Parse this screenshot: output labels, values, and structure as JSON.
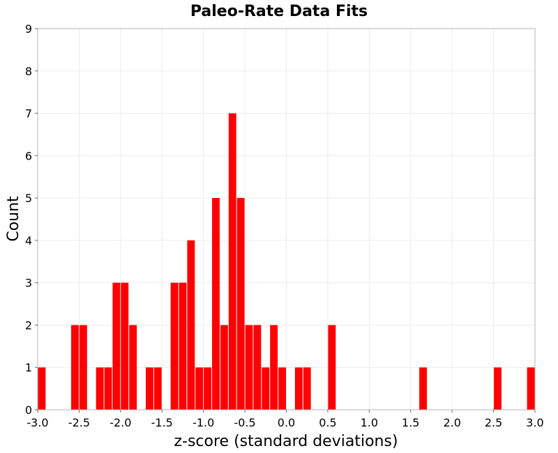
{
  "chart_data": {
    "type": "bar",
    "title": "Paleo-Rate Data Fits",
    "xlabel": "z-score (standard deviations)",
    "ylabel": "Count",
    "xlim": [
      -3.0,
      3.0
    ],
    "ylim": [
      0,
      9
    ],
    "bin_width": 0.1,
    "grid": true,
    "bar_color": "#ff0000",
    "x_ticks": [
      "-3.0",
      "-2.5",
      "-2.0",
      "-1.5",
      "-1.0",
      "-0.5",
      "0.0",
      "0.5",
      "1.0",
      "1.5",
      "2.0",
      "2.5",
      "3.0"
    ],
    "y_ticks": [
      "0",
      "1",
      "2",
      "3",
      "4",
      "5",
      "6",
      "7",
      "8",
      "9"
    ],
    "bins": [
      {
        "x": -2.95,
        "count": 1
      },
      {
        "x": -2.55,
        "count": 2
      },
      {
        "x": -2.45,
        "count": 2
      },
      {
        "x": -2.25,
        "count": 1
      },
      {
        "x": -2.15,
        "count": 1
      },
      {
        "x": -2.05,
        "count": 3
      },
      {
        "x": -1.95,
        "count": 3
      },
      {
        "x": -1.85,
        "count": 2
      },
      {
        "x": -1.65,
        "count": 1
      },
      {
        "x": -1.55,
        "count": 1
      },
      {
        "x": -1.35,
        "count": 3
      },
      {
        "x": -1.25,
        "count": 3
      },
      {
        "x": -1.15,
        "count": 4
      },
      {
        "x": -1.05,
        "count": 1
      },
      {
        "x": -0.95,
        "count": 1
      },
      {
        "x": -0.85,
        "count": 5
      },
      {
        "x": -0.75,
        "count": 2
      },
      {
        "x": -0.65,
        "count": 7
      },
      {
        "x": -0.55,
        "count": 5
      },
      {
        "x": -0.45,
        "count": 2
      },
      {
        "x": -0.35,
        "count": 2
      },
      {
        "x": -0.25,
        "count": 1
      },
      {
        "x": -0.15,
        "count": 2
      },
      {
        "x": -0.05,
        "count": 1
      },
      {
        "x": 0.15,
        "count": 1
      },
      {
        "x": 0.25,
        "count": 1
      },
      {
        "x": 0.55,
        "count": 2
      },
      {
        "x": 1.65,
        "count": 1
      },
      {
        "x": 2.55,
        "count": 1
      },
      {
        "x": 2.95,
        "count": 1
      }
    ]
  }
}
